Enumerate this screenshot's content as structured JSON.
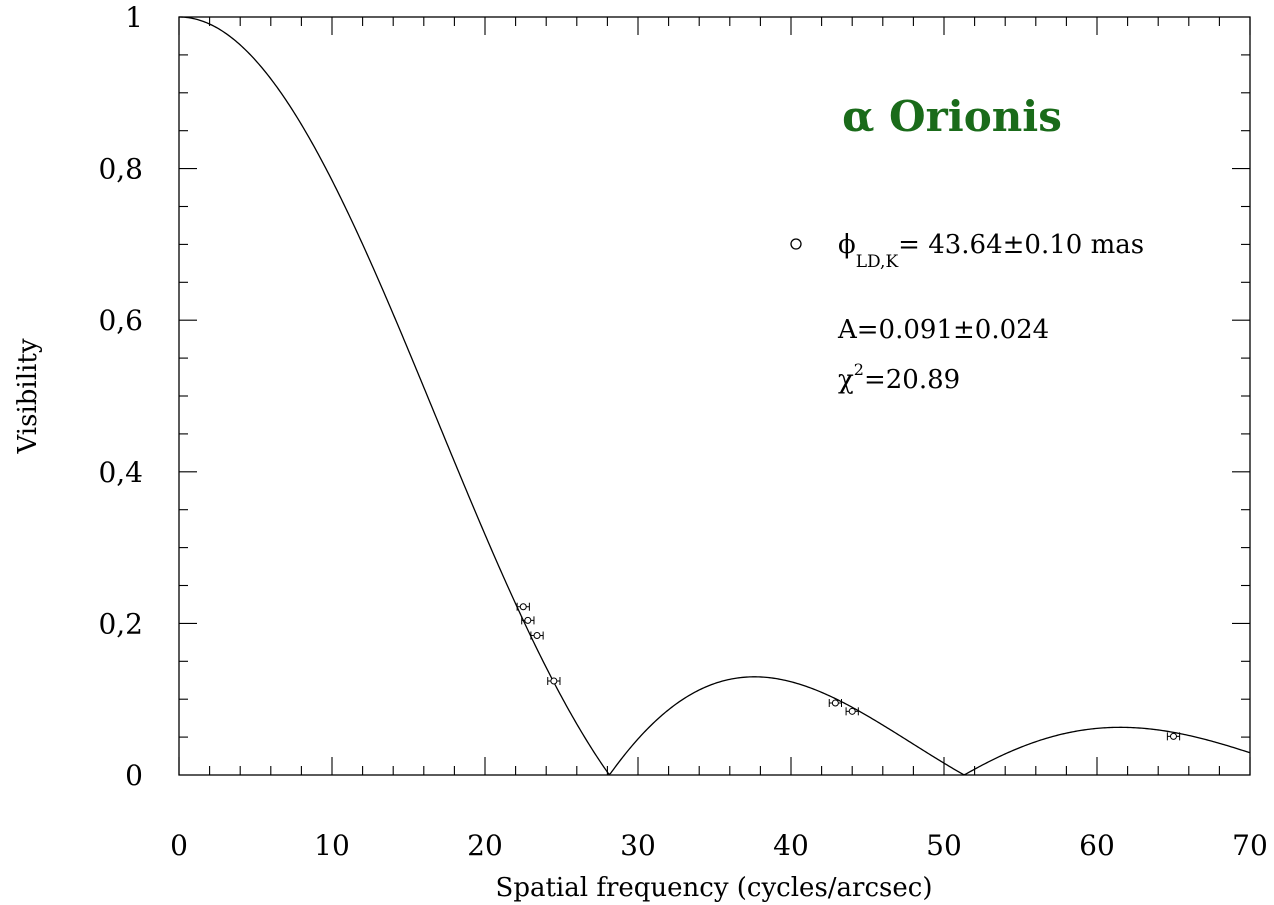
{
  "chart_data": {
    "type": "line",
    "title": "α Orionis",
    "title_color": "#1a6b1a",
    "xlabel": "Spatial frequency (cycles/arcsec)",
    "ylabel": "Visibility",
    "xlim": [
      0,
      70
    ],
    "ylim": [
      0,
      1
    ],
    "x_ticks": [
      0,
      10,
      20,
      30,
      40,
      50,
      60,
      70
    ],
    "x_tick_labels": [
      "0",
      "10",
      "20",
      "30",
      "40",
      "50",
      "60",
      "70"
    ],
    "y_ticks": [
      0,
      0.2,
      0.4,
      0.6,
      0.8,
      1
    ],
    "y_tick_labels": [
      "0",
      "0,2",
      "0,4",
      "0,6",
      "0,8",
      "1"
    ],
    "x_minor_step": 2,
    "y_minor_step": 0.05,
    "grid": false,
    "legend_position": "top-right",
    "model": {
      "diameter_mas": 43.64,
      "limb_darkening_A": 0.091
    },
    "series": [
      {
        "name": "ϕ",
        "marker": "open-circle",
        "points": [
          {
            "x": 22.5,
            "y": 0.222,
            "xerr": 0.4
          },
          {
            "x": 22.8,
            "y": 0.204,
            "xerr": 0.4
          },
          {
            "x": 23.4,
            "y": 0.184,
            "xerr": 0.4
          },
          {
            "x": 24.5,
            "y": 0.124,
            "xerr": 0.4
          },
          {
            "x": 42.9,
            "y": 0.095,
            "xerr": 0.4
          },
          {
            "x": 44.0,
            "y": 0.084,
            "xerr": 0.4
          },
          {
            "x": 65.0,
            "y": 0.051,
            "xerr": 0.4
          }
        ]
      }
    ],
    "annotations": {
      "legend_symbol": "ϕ",
      "legend_subscript": "LD,K",
      "legend_value": "= 43.64±0.10 mas",
      "a_line": "A=0.091±0.024",
      "chi_symbol": "χ",
      "chi_superscript": "2",
      "chi_value": "=20.89"
    }
  }
}
